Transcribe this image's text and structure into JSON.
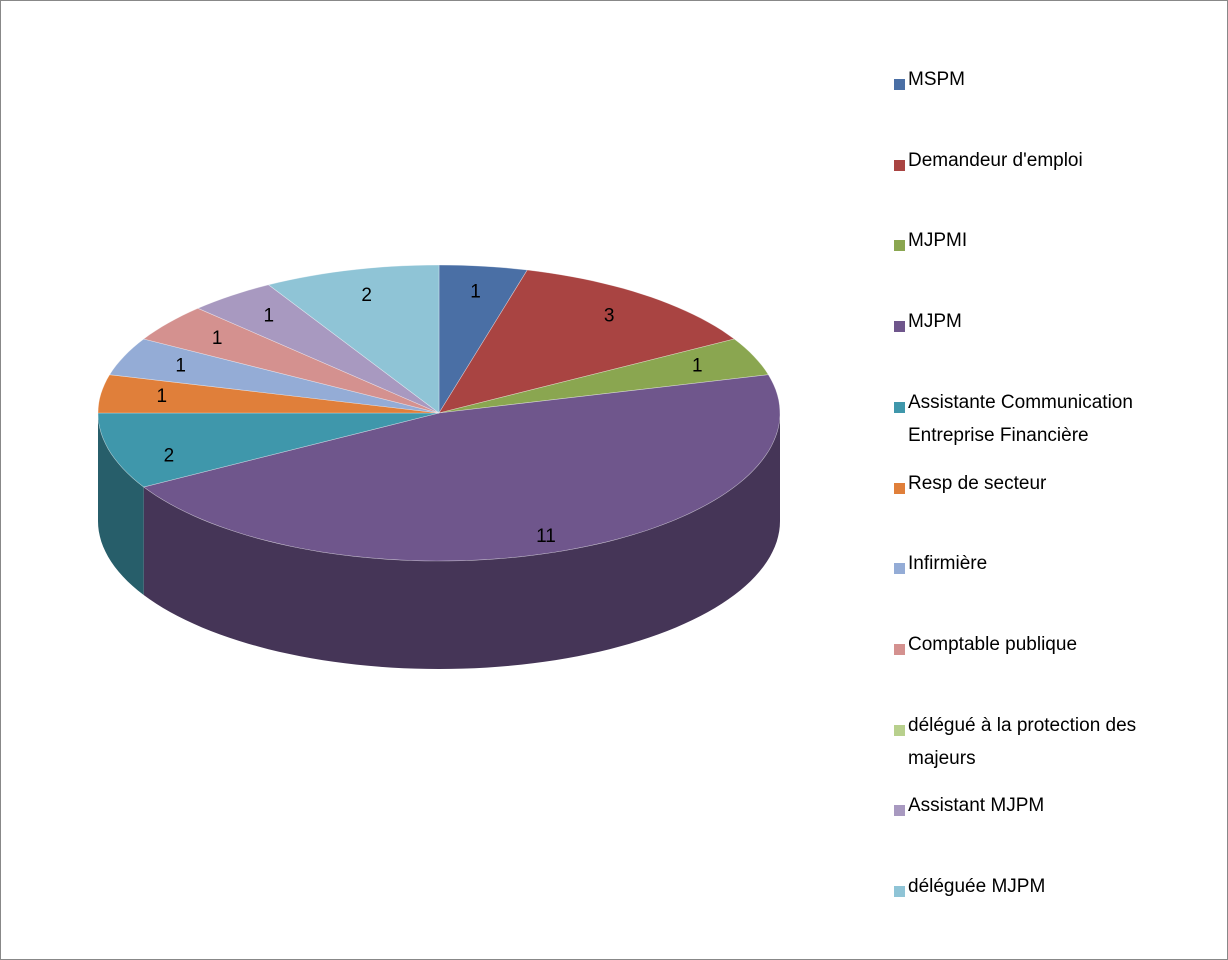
{
  "chart_data": {
    "type": "pie",
    "categories": [
      "MSPM",
      "Demandeur d'emploi",
      "MJPMI",
      "MJPM",
      "Assistante Communication Entreprise Financière",
      "Resp de secteur",
      "Infirmière",
      "Comptable publique",
      "délégué à la protection des majeurs",
      "Assistant MJPM",
      "déléguée MJPM"
    ],
    "values": [
      1,
      3,
      1,
      11,
      2,
      1,
      1,
      1,
      0,
      1,
      2
    ],
    "colors": [
      "#4a6fa5",
      "#a94442",
      "#8aa650",
      "#6f568c",
      "#3f97ab",
      "#e07f3a",
      "#94acd6",
      "#d4918f",
      "#b8d08d",
      "#a899c0",
      "#8fc4d6"
    ],
    "legend": "right"
  }
}
